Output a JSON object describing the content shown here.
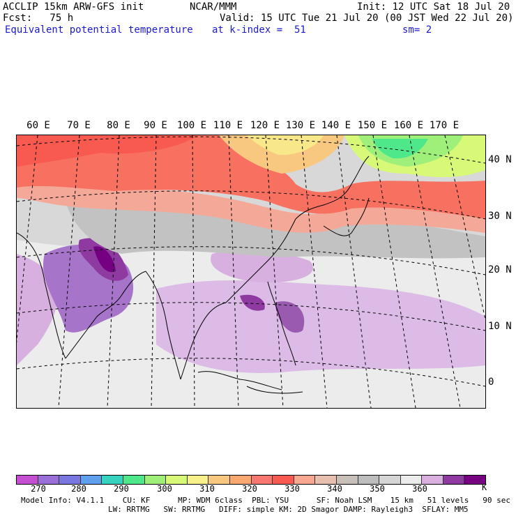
{
  "header": {
    "model": "ACCLIP 15km ARW-GFS init",
    "org": "NCAR/MMM",
    "init": "Init: 12 UTC Sat 18 Jul 20",
    "forecast": "Fcst:   75 h",
    "valid": "Valid: 15 UTC Tue 21 Jul 20 (00 JST Wed 22 Jul 20)",
    "field": "Equivalent potential temperature",
    "level": "at k-index =  51",
    "smoothing": "sm= 2"
  },
  "map": {
    "longitude_labels": [
      "60 E",
      "70 E",
      "80 E",
      "90 E",
      "100 E",
      "110 E",
      "120 E",
      "130 E",
      "140 E",
      "150 E",
      "160 E",
      "170 E"
    ],
    "latitude_labels": [
      "40 N",
      "30 N",
      "20 N",
      "10 N",
      "0"
    ]
  },
  "colorbar": {
    "unit": "K",
    "colors": [
      "#c44fd0",
      "#9a6fd8",
      "#7a78e0",
      "#5fa0ee",
      "#38d2c0",
      "#4ee88a",
      "#9ef07a",
      "#d8f878",
      "#f8f08a",
      "#f8c880",
      "#f8a870",
      "#f87870",
      "#f85a50",
      "#f8a890",
      "#e8c0b0",
      "#c8c0b8",
      "#bdbdbd",
      "#d6d6d6",
      "#ececec",
      "#d8b0e0",
      "#8e3aa0",
      "#760082"
    ],
    "tick_labels": [
      "270",
      "280",
      "290",
      "300",
      "310",
      "320",
      "330",
      "340",
      "350",
      "360"
    ]
  },
  "footer": {
    "line1": "Model Info: V4.1.1    CU: KF      MP: WDM 6class  PBL: YSU      SF: Noah LSM    15 km   51 levels   90 sec",
    "line2": "LW: RRTMG   SW: RRTMG   DIFF: simple KM: 2D Smagor DAMP: Rayleigh3  SFLAY: MM5"
  }
}
